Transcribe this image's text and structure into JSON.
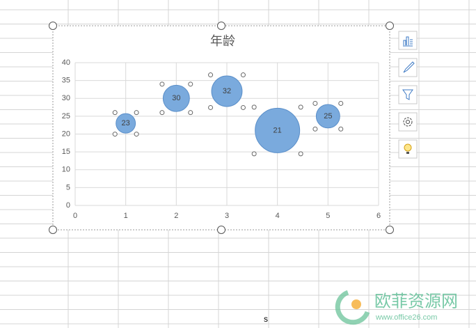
{
  "chart_data": {
    "type": "bubble",
    "title": "年龄",
    "series": [
      {
        "color": "#7aaadd",
        "x": [
          1,
          2,
          3,
          4,
          5
        ],
        "values": [
          23,
          30,
          32,
          21,
          25
        ],
        "sizes": [
          19,
          35,
          47,
          100,
          28
        ]
      }
    ],
    "xlim": [
      0,
      6
    ],
    "xticks": [
      0,
      1,
      2,
      3,
      4,
      5,
      6
    ],
    "ylim": [
      0,
      40
    ],
    "yticks": [
      0,
      5,
      10,
      15,
      20,
      25,
      30,
      35,
      40
    ],
    "grid": true,
    "data_labels": true
  },
  "watermark": {
    "name": "欧菲资源网",
    "url": "www.office26.com"
  },
  "cell_text": "s"
}
